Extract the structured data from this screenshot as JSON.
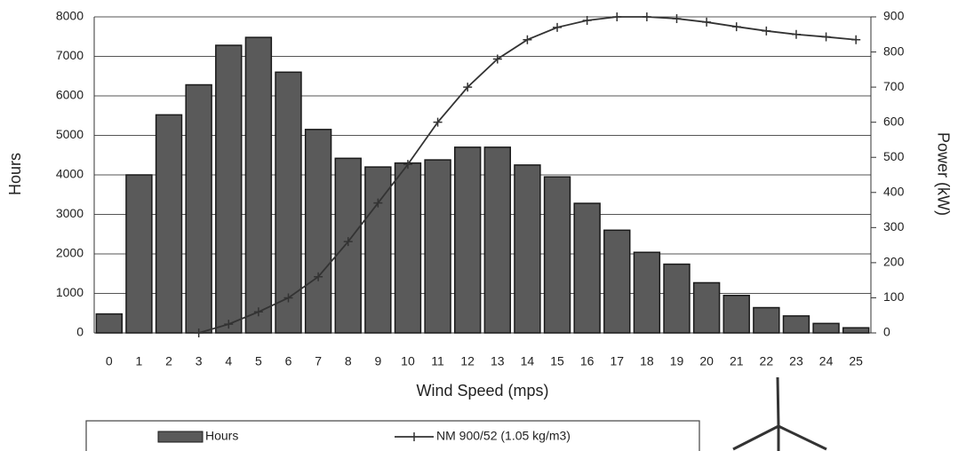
{
  "chart_data": {
    "type": "bar-line",
    "categories": [
      "0",
      "1",
      "2",
      "3",
      "4",
      "5",
      "6",
      "7",
      "8",
      "9",
      "10",
      "11",
      "12",
      "13",
      "14",
      "15",
      "16",
      "17",
      "18",
      "19",
      "20",
      "21",
      "22",
      "23",
      "24",
      "25"
    ],
    "series": [
      {
        "name": "Hours",
        "type": "bar",
        "color": "#5a5a5a",
        "values": [
          480,
          4000,
          5520,
          6280,
          7280,
          7480,
          6600,
          5150,
          4420,
          4200,
          4300,
          4380,
          4700,
          4700,
          4250,
          3950,
          3280,
          2600,
          2040,
          1740,
          1270,
          950,
          640,
          430,
          240,
          130
        ]
      },
      {
        "name": "NM 900/52 (1.05 kg/m3)",
        "type": "line",
        "axis": "y2",
        "color": "#333333",
        "values": [
          null,
          null,
          null,
          0,
          25,
          60,
          100,
          160,
          260,
          370,
          480,
          600,
          700,
          780,
          835,
          870,
          890,
          900,
          900,
          895,
          885,
          872,
          860,
          850,
          843,
          835
        ]
      }
    ],
    "x_label": "Wind Speed (mps)",
    "y_label": "Hours",
    "y2_label": "Power (kW)",
    "ylim": [
      0,
      8000
    ],
    "yticks": [
      0,
      1000,
      2000,
      3000,
      4000,
      5000,
      6000,
      7000,
      8000
    ],
    "y2lim": [
      0,
      900
    ],
    "y2ticks": [
      0,
      100,
      200,
      300,
      400,
      500,
      600,
      700,
      800,
      900
    ],
    "grid": true,
    "legend": "bottom"
  }
}
